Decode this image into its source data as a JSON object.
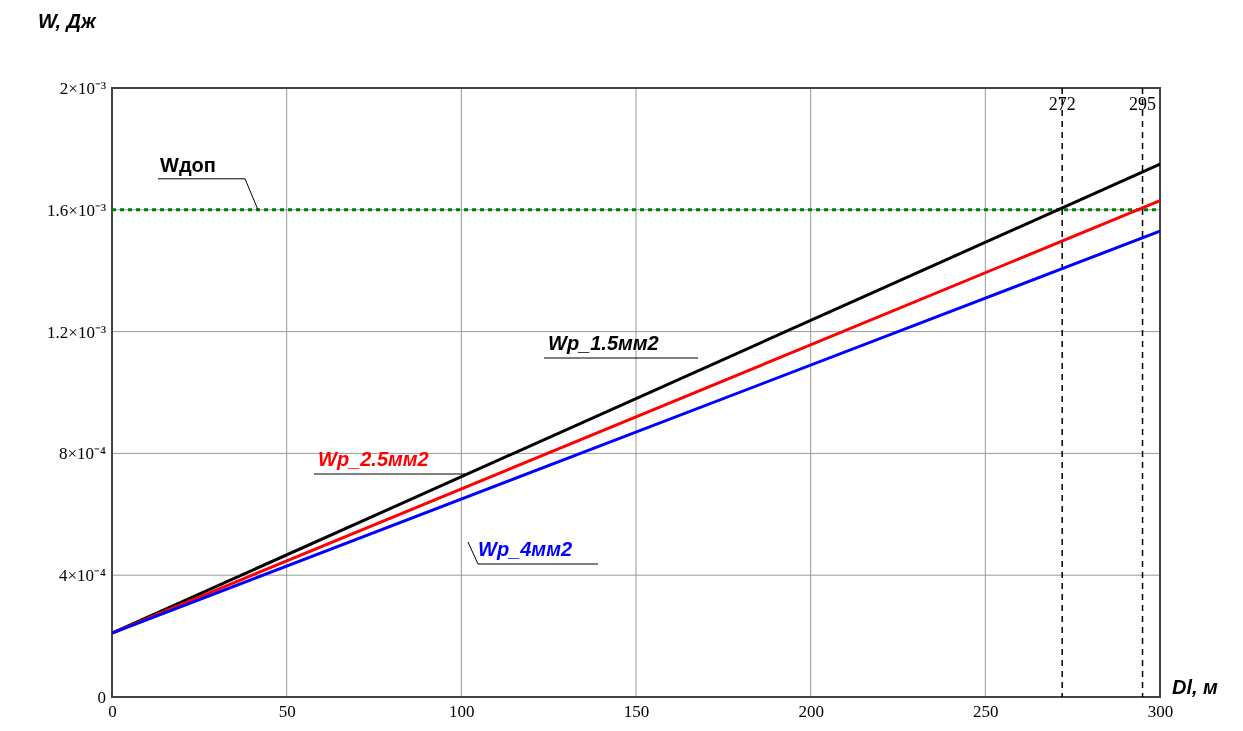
{
  "chart_data": {
    "type": "line",
    "xlabel": "Dl, м",
    "ylabel": "W, Дж",
    "x": [
      0,
      300
    ],
    "series": [
      {
        "name": "Wp_1.5мм2",
        "color": "#000000",
        "values": [
          0.00021,
          0.00175
        ]
      },
      {
        "name": "Wp_2.5мм2",
        "color": "#ff0000",
        "values": [
          0.00021,
          0.00163
        ]
      },
      {
        "name": "Wp_4мм2",
        "color": "#0000ff",
        "values": [
          0.00021,
          0.00153
        ]
      }
    ],
    "xlim": [
      0,
      300
    ],
    "xticks": [
      0,
      50,
      100,
      150,
      200,
      250,
      300
    ],
    "ylim": [
      0,
      0.002
    ],
    "yticks": [
      0,
      {
        "value": 0.0004,
        "label": "4×10⁻⁴"
      },
      {
        "value": 0.0008,
        "label": "8×10⁻⁴"
      },
      {
        "value": 0.0012,
        "label": "1.2×10⁻³"
      },
      {
        "value": 0.0016,
        "label": "1.6×10⁻³"
      },
      {
        "value": 0.002,
        "label": "2×10⁻³"
      }
    ],
    "ref_lines": [
      {
        "axis": "y",
        "value": 0.0016,
        "label": "Wдоп",
        "color": "#008000",
        "line_style": "dotted"
      },
      {
        "axis": "x",
        "value": 272,
        "label": "272",
        "color": "#000000",
        "line_style": "dashed"
      },
      {
        "axis": "x",
        "value": 295,
        "label": "295",
        "color": "#000000",
        "line_style": "dashed"
      }
    ],
    "grid": true,
    "legend": false,
    "marker": "none",
    "line_style": "solid"
  }
}
